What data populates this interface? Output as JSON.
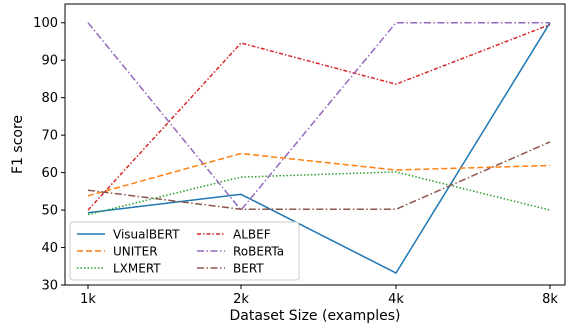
{
  "chart_data": {
    "type": "line",
    "title": "",
    "xlabel": "Dataset Size (examples)",
    "ylabel": "F1 score",
    "categories": [
      "1k",
      "2k",
      "4k",
      "8k"
    ],
    "ylim": [
      30,
      105
    ],
    "yticks": [
      30,
      40,
      50,
      60,
      70,
      80,
      90,
      100
    ],
    "grid": false,
    "legend": "lower-left",
    "legend_columns": 2,
    "series": [
      {
        "name": "VisualBERT",
        "values": [
          49.3,
          54.2,
          33.2,
          100
        ],
        "color": "#1f77b4",
        "linestyle": "solid"
      },
      {
        "name": "UNITER",
        "values": [
          53.8,
          65.1,
          60.7,
          61.9
        ],
        "color": "#ff7f0e",
        "linestyle": "dashed"
      },
      {
        "name": "LXMERT",
        "values": [
          48.8,
          58.8,
          60.2,
          50.0
        ],
        "color": "#2ca02c",
        "linestyle": "dotted"
      },
      {
        "name": "ALBEF",
        "values": [
          50.0,
          94.6,
          83.6,
          99.5
        ],
        "color": "#d62728",
        "linestyle": "dashdot-dense"
      },
      {
        "name": "RoBERTa",
        "values": [
          100,
          50.0,
          100,
          100
        ],
        "color": "#9467bd",
        "linestyle": "dashdot"
      },
      {
        "name": "BERT",
        "values": [
          55.3,
          50.2,
          50.2,
          68.2
        ],
        "color": "#8c564b",
        "linestyle": "dashdot"
      }
    ]
  }
}
